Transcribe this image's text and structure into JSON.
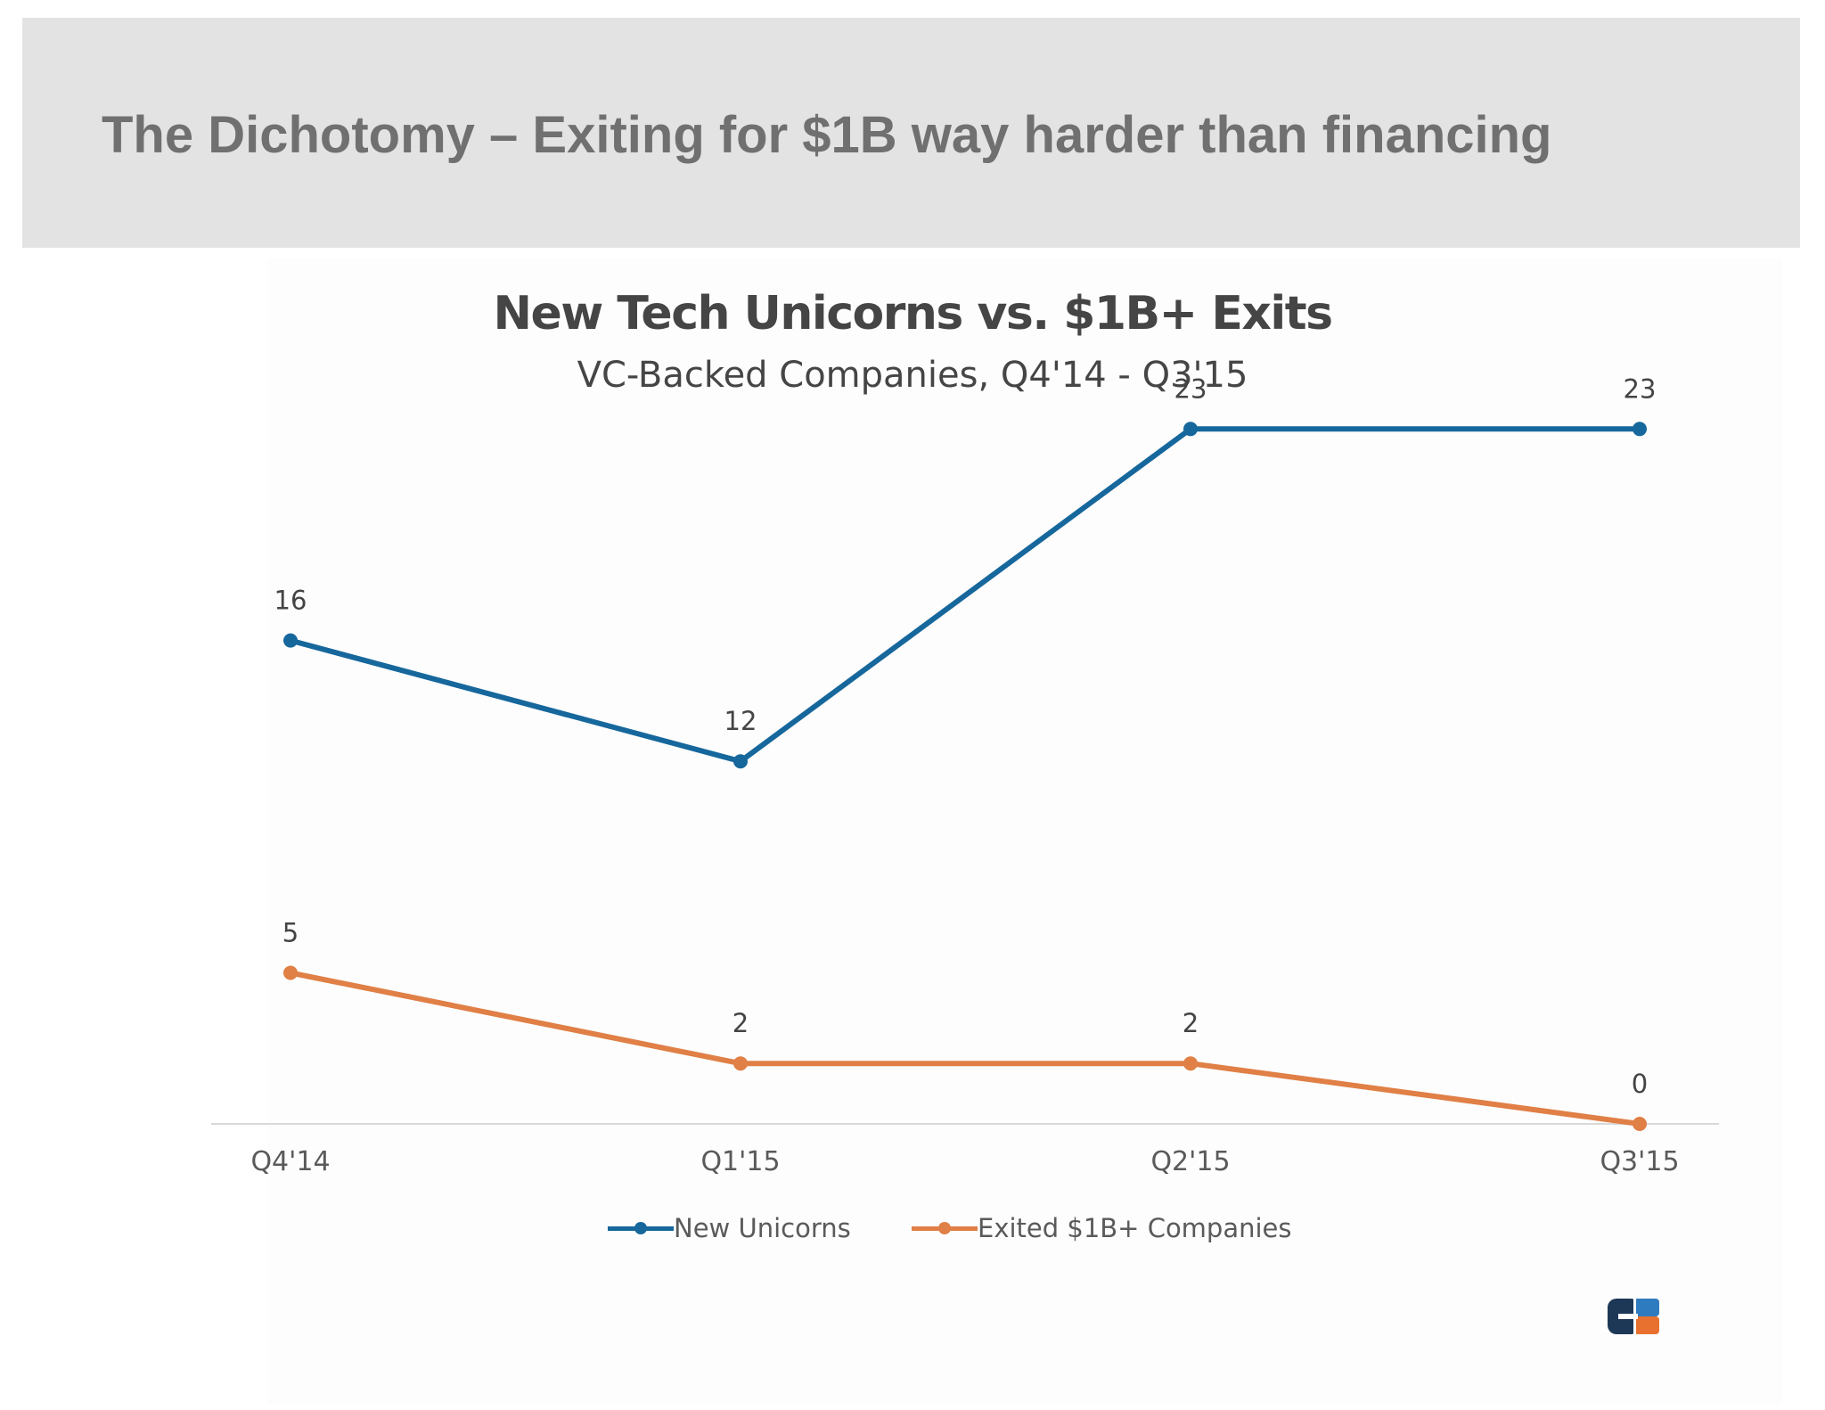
{
  "slide": {
    "title": "The Dichotomy – Exiting for $1B way harder than financing"
  },
  "chart_data": {
    "type": "line",
    "title": "New Tech Unicorns vs. $1B+ Exits",
    "subtitle": "VC-Backed Companies, Q4'14 - Q3'15",
    "categories": [
      "Q4'14",
      "Q1'15",
      "Q2'15",
      "Q3'15"
    ],
    "series": [
      {
        "name": "New Unicorns",
        "values": [
          16,
          12,
          23,
          23
        ],
        "color": "#16679c"
      },
      {
        "name": "Exited $1B+ Companies",
        "values": [
          5,
          2,
          2,
          0
        ],
        "color": "#e07f46"
      }
    ],
    "ylim": [
      0,
      27
    ],
    "grid": false,
    "data_labels": true,
    "legend_position": "bottom"
  },
  "logo": {
    "name": "cb-insights-logo-icon",
    "colors": [
      "#1d3856",
      "#2f7bbf",
      "#e8712f"
    ]
  }
}
